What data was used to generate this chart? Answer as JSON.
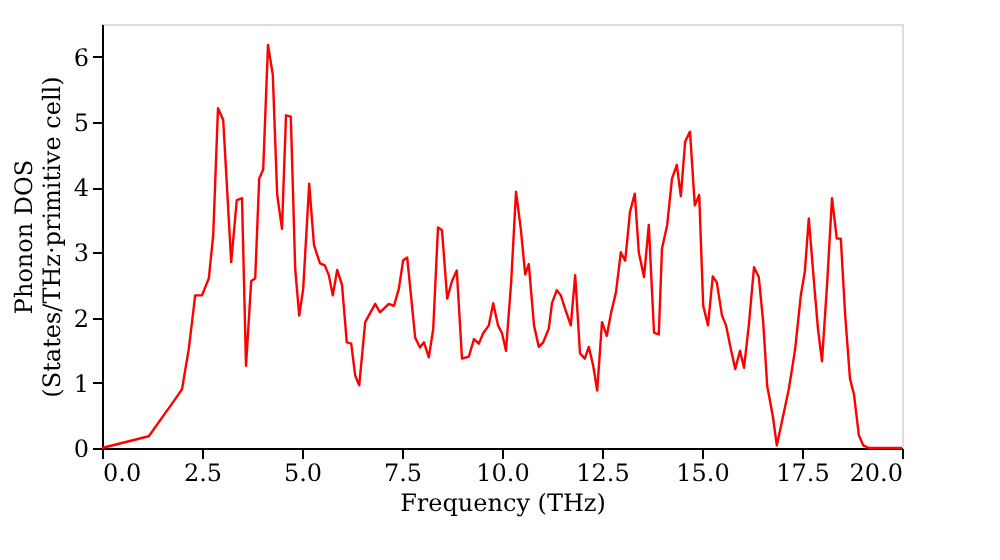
{
  "chart_data": {
    "type": "line",
    "xlabel": "Frequency (THz)",
    "ylabel": "Phonon DOS\n(States/THz·primitive cell)",
    "xlim": [
      0,
      20
    ],
    "ylim": [
      0,
      6.5
    ],
    "xticks": [
      {
        "value": 0,
        "label": "0.0"
      },
      {
        "value": 2.5,
        "label": "2.5"
      },
      {
        "value": 5,
        "label": "5.0"
      },
      {
        "value": 7.5,
        "label": "7.5"
      },
      {
        "value": 10,
        "label": "10.0"
      },
      {
        "value": 12.5,
        "label": "12.5"
      },
      {
        "value": 15,
        "label": "15.0"
      },
      {
        "value": 17.5,
        "label": "17.5"
      },
      {
        "value": 20,
        "label": "20.0"
      }
    ],
    "yticks": [
      0,
      1,
      2,
      3,
      4,
      5,
      6
    ],
    "grid": false,
    "marker": "none",
    "line_style": "solid",
    "x": [
      0,
      1.17,
      1.83,
      2.0,
      2.17,
      2.33,
      2.5,
      2.67,
      2.78,
      2.9,
      3.03,
      3.23,
      3.37,
      3.5,
      3.6,
      3.73,
      3.83,
      3.93,
      4.03,
      4.15,
      4.27,
      4.38,
      4.5,
      4.6,
      4.72,
      4.83,
      4.93,
      5.03,
      5.18,
      5.3,
      5.45,
      5.57,
      5.67,
      5.77,
      5.88,
      6.0,
      6.12,
      6.23,
      6.33,
      6.43,
      6.58,
      6.83,
      6.95,
      7.17,
      7.3,
      7.42,
      7.53,
      7.63,
      7.83,
      7.95,
      8.05,
      8.17,
      8.28,
      8.4,
      8.5,
      8.63,
      8.75,
      8.87,
      9.0,
      9.17,
      9.3,
      9.42,
      9.53,
      9.67,
      9.78,
      9.9,
      10.0,
      10.1,
      10.23,
      10.35,
      10.47,
      10.58,
      10.67,
      10.8,
      10.92,
      11.03,
      11.17,
      11.25,
      11.37,
      11.47,
      11.58,
      11.72,
      11.83,
      11.95,
      12.07,
      12.17,
      12.28,
      12.38,
      12.5,
      12.62,
      12.73,
      12.85,
      12.97,
      13.08,
      13.2,
      13.32,
      13.42,
      13.55,
      13.67,
      13.8,
      13.92,
      14.0,
      14.13,
      14.25,
      14.37,
      14.47,
      14.58,
      14.7,
      14.82,
      14.93,
      15.03,
      15.15,
      15.27,
      15.37,
      15.5,
      15.6,
      15.72,
      15.83,
      15.95,
      16.05,
      16.17,
      16.3,
      16.42,
      16.53,
      16.63,
      16.77,
      16.87,
      17.0,
      17.17,
      17.33,
      17.47,
      17.57,
      17.67,
      17.8,
      17.9,
      18.0,
      18.13,
      18.25,
      18.37,
      18.47,
      18.58,
      18.7,
      18.8,
      18.92,
      19.03,
      19.17,
      20
    ],
    "series": [
      {
        "color": "#ff0000",
        "values": [
          0,
          0.18,
          0.75,
          0.9,
          1.52,
          2.34,
          2.34,
          2.6,
          3.26,
          5.21,
          5.03,
          2.85,
          3.8,
          3.83,
          1.26,
          2.56,
          2.6,
          4.13,
          4.27,
          6.18,
          5.72,
          3.88,
          3.36,
          5.1,
          5.08,
          2.75,
          2.03,
          2.44,
          4.05,
          3.11,
          2.83,
          2.8,
          2.65,
          2.34,
          2.73,
          2.5,
          1.62,
          1.6,
          1.11,
          0.96,
          1.93,
          2.21,
          2.08,
          2.21,
          2.18,
          2.44,
          2.88,
          2.92,
          1.69,
          1.54,
          1.62,
          1.39,
          1.82,
          3.38,
          3.34,
          2.29,
          2.56,
          2.72,
          1.37,
          1.4,
          1.67,
          1.6,
          1.76,
          1.88,
          2.22,
          1.88,
          1.76,
          1.49,
          2.55,
          3.93,
          3.36,
          2.66,
          2.82,
          1.88,
          1.55,
          1.62,
          1.83,
          2.22,
          2.42,
          2.34,
          2.13,
          1.88,
          2.65,
          1.45,
          1.37,
          1.55,
          1.26,
          0.88,
          1.93,
          1.72,
          2.08,
          2.39,
          3.0,
          2.87,
          3.62,
          3.9,
          3.0,
          2.62,
          3.42,
          1.77,
          1.74,
          3.06,
          3.42,
          4.13,
          4.34,
          3.86,
          4.7,
          4.85,
          3.72,
          3.88,
          2.18,
          1.88,
          2.63,
          2.54,
          2.03,
          1.88,
          1.52,
          1.21,
          1.49,
          1.23,
          1.88,
          2.77,
          2.62,
          1.93,
          0.95,
          0.49,
          0.04,
          0.41,
          0.9,
          1.52,
          2.34,
          2.7,
          3.52,
          2.54,
          1.82,
          1.33,
          2.54,
          3.83,
          3.21,
          3.21,
          2.03,
          1.06,
          0.82,
          0.2,
          0.04,
          0,
          0
        ]
      }
    ]
  }
}
